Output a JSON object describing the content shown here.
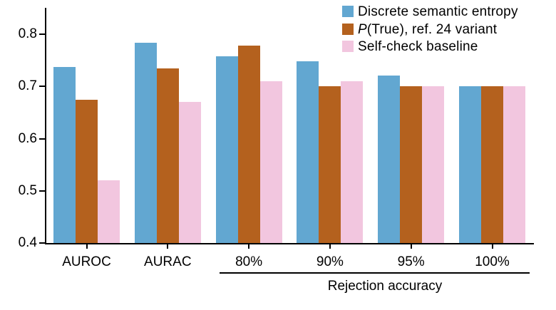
{
  "figure": {
    "background_color": "#ffffff",
    "axis_color": "#000000",
    "text_color": "#000000"
  },
  "chart_data": {
    "type": "bar",
    "title": "",
    "xlabel": "",
    "ylabel": "",
    "categories": [
      "AUROC",
      "AURAC",
      "80%",
      "90%",
      "95%",
      "100%"
    ],
    "series": [
      {
        "name": "Discrete semantic entropy",
        "name_italic_prefix": "",
        "color": "#62A7D1",
        "values": [
          0.737,
          0.783,
          0.758,
          0.748,
          0.721,
          0.7
        ]
      },
      {
        "name": "(True), ref. 24 variant",
        "name_italic_prefix": "P",
        "color": "#B4611E",
        "values": [
          0.674,
          0.735,
          0.778,
          0.7,
          0.7,
          0.7
        ]
      },
      {
        "name": "Self-check baseline",
        "name_italic_prefix": "",
        "color": "#F2C6DF",
        "values": [
          0.52,
          0.67,
          0.71,
          0.71,
          0.7,
          0.7
        ]
      }
    ],
    "ylim": [
      0.4,
      0.85
    ],
    "yticks": [
      0.4,
      0.5,
      0.6,
      0.7,
      0.8
    ],
    "ytick_labels": [
      "0.4",
      "0.5",
      "0.6",
      "0.7",
      "0.8"
    ],
    "grid": false,
    "legend_position": "top-right",
    "group_axis_label": "Rejection accuracy",
    "group_axis_span_categories": [
      "80%",
      "90%",
      "95%",
      "100%"
    ]
  }
}
